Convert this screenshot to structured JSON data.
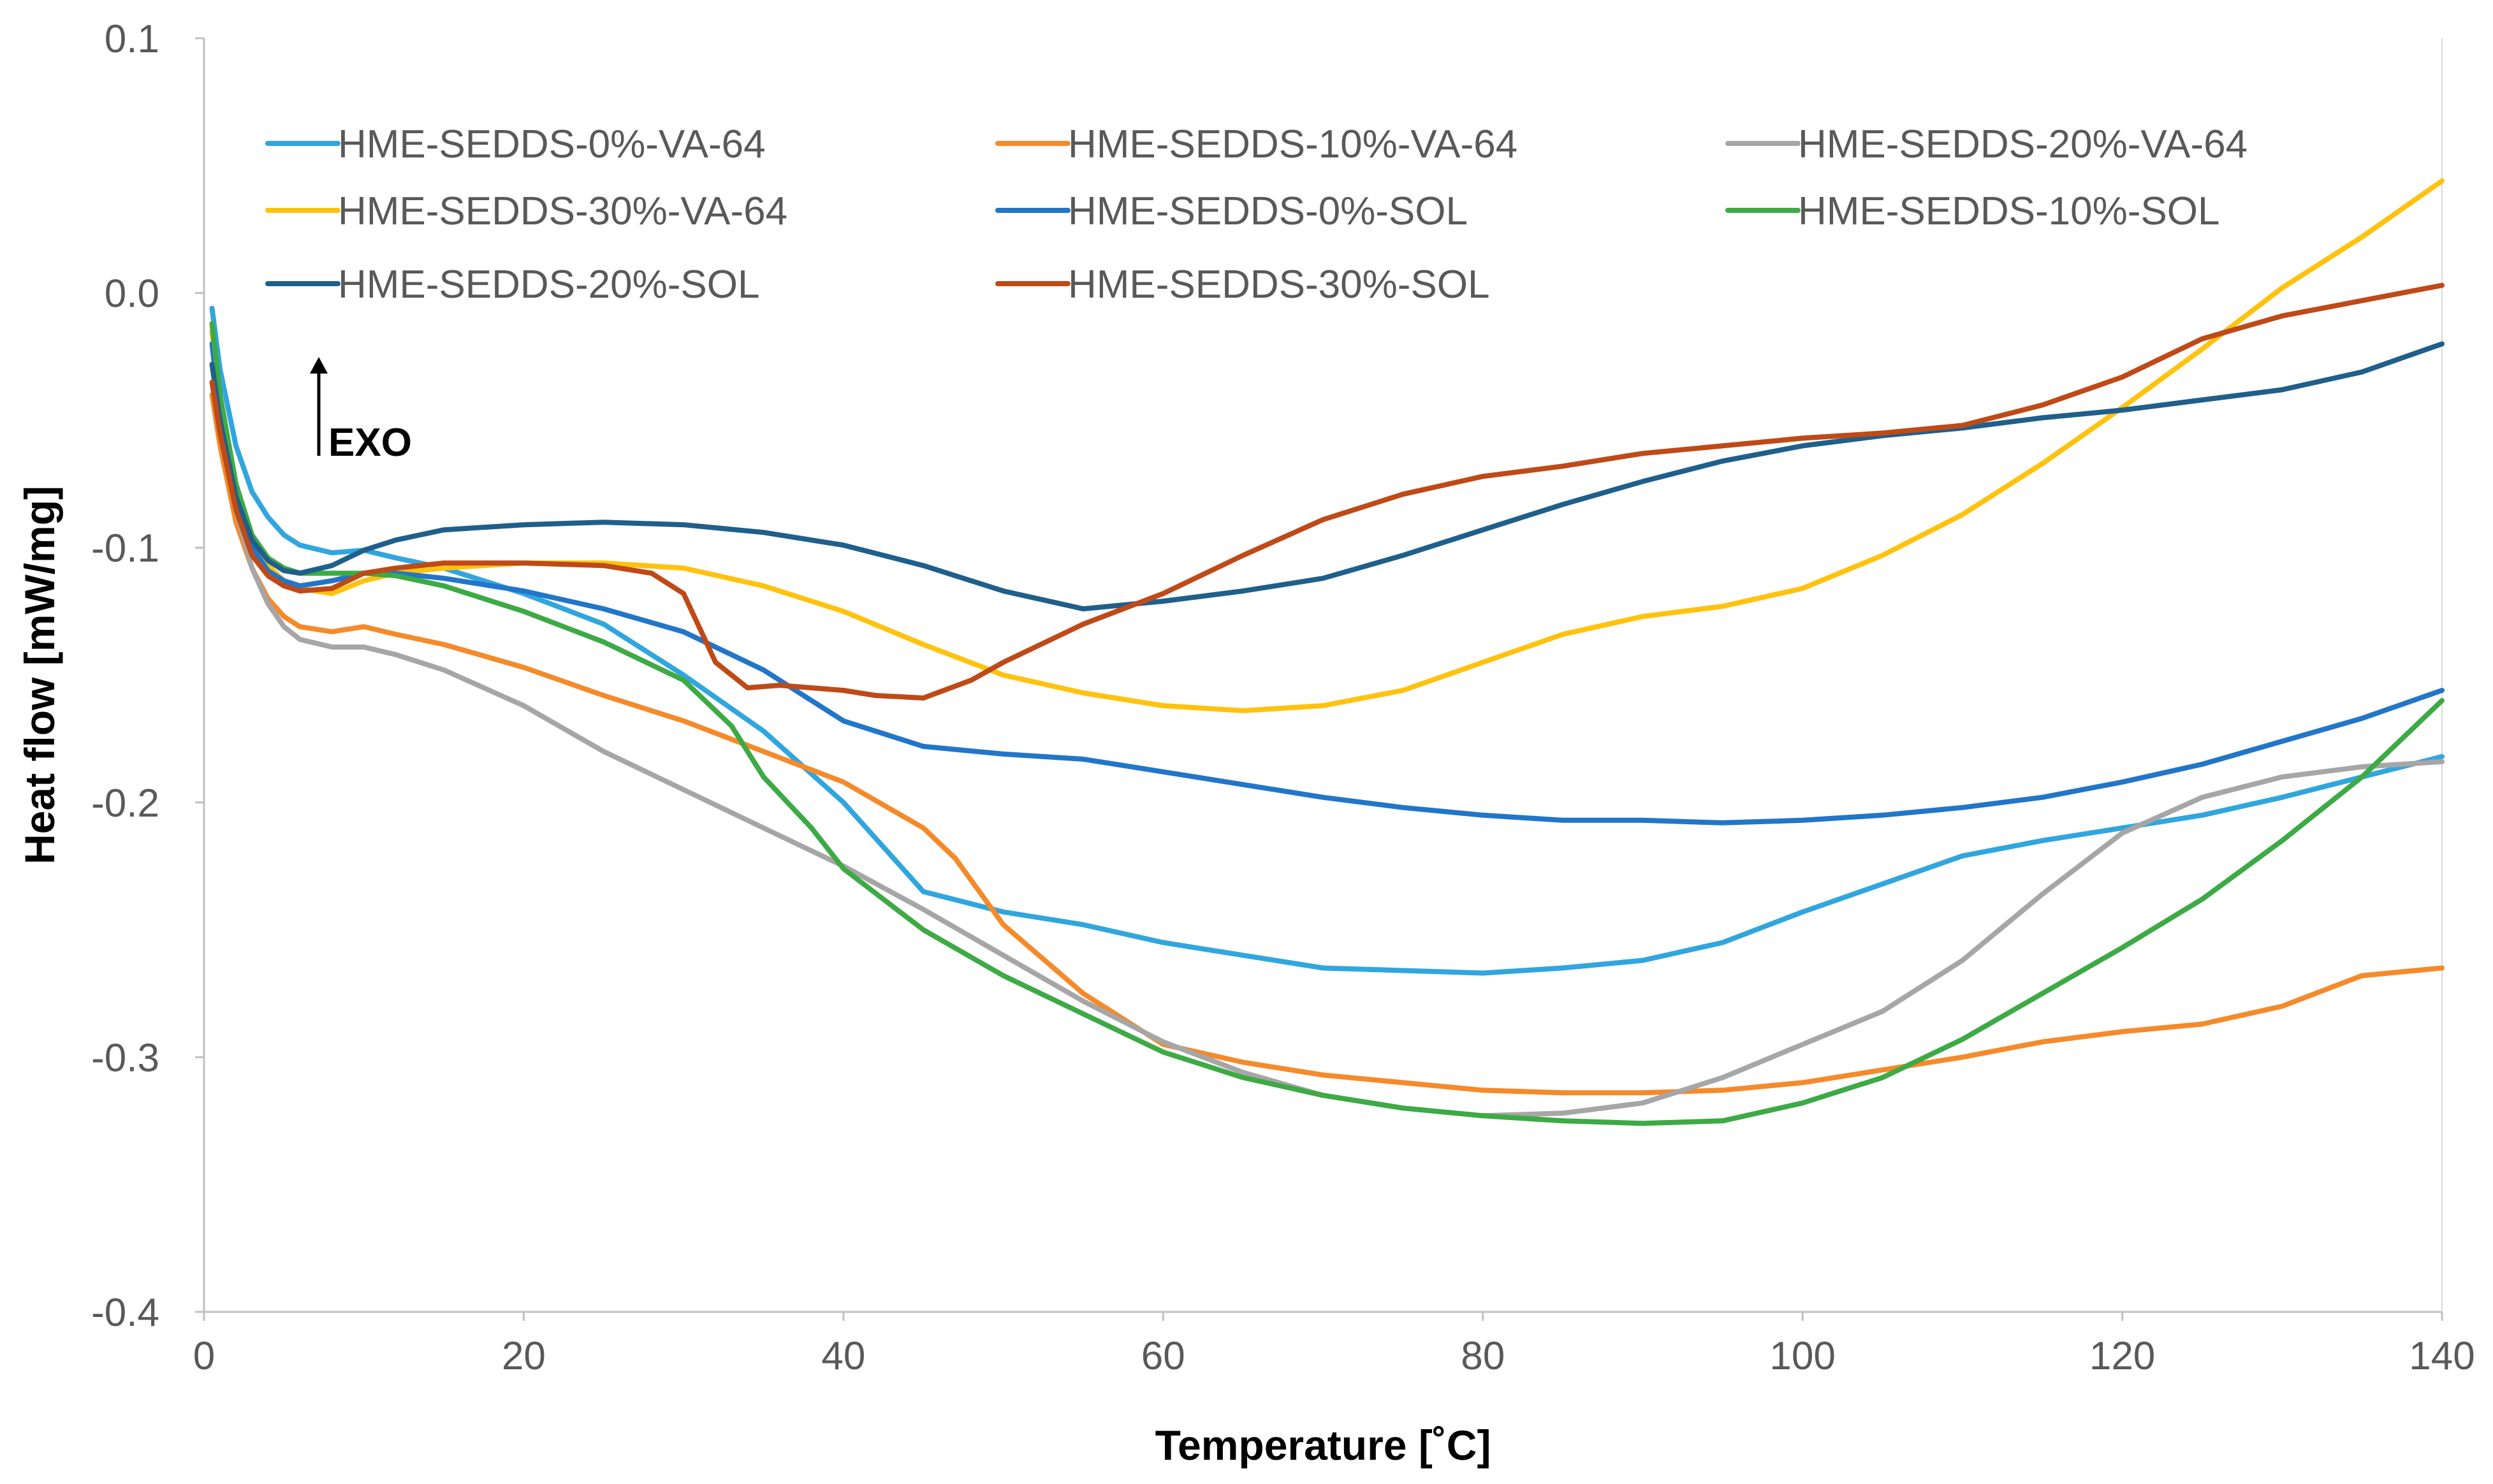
{
  "chart_data": {
    "type": "line",
    "title": "",
    "xlabel": "Temperature [˚C]",
    "ylabel": "Heat flow [mW/mg]",
    "xlim": [
      0,
      140
    ],
    "ylim": [
      -0.4,
      0.1
    ],
    "xticks": [
      "0",
      "20",
      "40",
      "60",
      "80",
      "100",
      "120",
      "140"
    ],
    "yticks": [
      "0.1",
      "0.0",
      "-0.1",
      "-0.2",
      "-0.3",
      "-0.4"
    ],
    "grid": false,
    "legend_position": "top-left, inside plot, 3 columns",
    "annotation": "EXO",
    "series": [
      {
        "name": "HME-SEDDS-0%-VA-64",
        "color": "#31A6DE",
        "x": [
          0.5,
          1,
          2,
          3,
          4,
          5,
          6,
          8,
          10,
          12,
          15,
          20,
          25,
          30,
          35,
          40,
          45,
          50,
          55,
          60,
          65,
          70,
          75,
          80,
          85,
          90,
          95,
          100,
          105,
          110,
          115,
          120,
          125,
          130,
          135,
          140
        ],
        "y": [
          -0.006,
          -0.03,
          -0.06,
          -0.078,
          -0.088,
          -0.095,
          -0.099,
          -0.102,
          -0.101,
          -0.104,
          -0.108,
          -0.118,
          -0.13,
          -0.15,
          -0.172,
          -0.2,
          -0.235,
          -0.243,
          -0.248,
          -0.255,
          -0.26,
          -0.265,
          -0.266,
          -0.267,
          -0.265,
          -0.262,
          -0.255,
          -0.243,
          -0.232,
          -0.221,
          -0.215,
          -0.21,
          -0.205,
          -0.198,
          -0.19,
          -0.182
        ]
      },
      {
        "name": "HME-SEDDS-10%-VA-64",
        "color": "#F58A2B",
        "x": [
          0.5,
          1,
          2,
          3,
          4,
          5,
          6,
          8,
          10,
          12,
          15,
          20,
          25,
          30,
          35,
          40,
          45,
          47,
          50,
          55,
          60,
          65,
          70,
          75,
          80,
          85,
          90,
          95,
          100,
          105,
          110,
          115,
          120,
          125,
          130,
          135,
          140
        ],
        "y": [
          -0.04,
          -0.06,
          -0.09,
          -0.108,
          -0.12,
          -0.127,
          -0.131,
          -0.133,
          -0.131,
          -0.134,
          -0.138,
          -0.147,
          -0.158,
          -0.168,
          -0.18,
          -0.192,
          -0.21,
          -0.222,
          -0.248,
          -0.275,
          -0.295,
          -0.302,
          -0.307,
          -0.31,
          -0.313,
          -0.314,
          -0.314,
          -0.313,
          -0.31,
          -0.305,
          -0.3,
          -0.294,
          -0.29,
          -0.287,
          -0.28,
          -0.268,
          -0.265
        ]
      },
      {
        "name": "HME-SEDDS-20%-VA-64",
        "color": "#A6A6A6",
        "x": [
          0.5,
          1,
          2,
          3,
          4,
          5,
          6,
          8,
          10,
          12,
          15,
          20,
          25,
          30,
          35,
          40,
          45,
          50,
          55,
          60,
          65,
          70,
          75,
          80,
          85,
          90,
          95,
          100,
          105,
          110,
          115,
          120,
          125,
          130,
          135,
          140
        ],
        "y": [
          -0.02,
          -0.05,
          -0.085,
          -0.108,
          -0.122,
          -0.131,
          -0.136,
          -0.139,
          -0.139,
          -0.142,
          -0.148,
          -0.162,
          -0.18,
          -0.195,
          -0.21,
          -0.225,
          -0.242,
          -0.26,
          -0.278,
          -0.294,
          -0.306,
          -0.315,
          -0.32,
          -0.323,
          -0.322,
          -0.318,
          -0.308,
          -0.295,
          -0.282,
          -0.262,
          -0.236,
          -0.212,
          -0.198,
          -0.19,
          -0.186,
          -0.184
        ]
      },
      {
        "name": "HME-SEDDS-30%-VA-64",
        "color": "#FFC20E",
        "x": [
          0.5,
          1,
          2,
          3,
          4,
          5,
          6,
          8,
          10,
          12,
          15,
          20,
          25,
          30,
          35,
          40,
          45,
          50,
          55,
          60,
          65,
          70,
          75,
          80,
          85,
          90,
          95,
          100,
          105,
          110,
          115,
          120,
          125,
          130,
          135,
          140
        ],
        "y": [
          -0.015,
          -0.045,
          -0.078,
          -0.097,
          -0.107,
          -0.113,
          -0.116,
          -0.118,
          -0.113,
          -0.11,
          -0.108,
          -0.106,
          -0.106,
          -0.108,
          -0.115,
          -0.125,
          -0.138,
          -0.15,
          -0.157,
          -0.162,
          -0.164,
          -0.162,
          -0.156,
          -0.145,
          -0.134,
          -0.127,
          -0.123,
          -0.116,
          -0.103,
          -0.087,
          -0.067,
          -0.045,
          -0.022,
          0.002,
          0.022,
          0.044
        ]
      },
      {
        "name": "HME-SEDDS-0%-SOL",
        "color": "#2276C9",
        "x": [
          0.5,
          1,
          2,
          3,
          4,
          5,
          6,
          8,
          10,
          12,
          15,
          20,
          25,
          30,
          35,
          40,
          45,
          50,
          55,
          60,
          65,
          70,
          75,
          80,
          85,
          90,
          95,
          100,
          105,
          110,
          115,
          120,
          125,
          130,
          135,
          140
        ],
        "y": [
          -0.02,
          -0.045,
          -0.08,
          -0.1,
          -0.109,
          -0.113,
          -0.115,
          -0.113,
          -0.11,
          -0.11,
          -0.112,
          -0.117,
          -0.124,
          -0.133,
          -0.148,
          -0.168,
          -0.178,
          -0.181,
          -0.183,
          -0.188,
          -0.193,
          -0.198,
          -0.202,
          -0.205,
          -0.207,
          -0.207,
          -0.208,
          -0.207,
          -0.205,
          -0.202,
          -0.198,
          -0.192,
          -0.185,
          -0.176,
          -0.167,
          -0.156
        ]
      },
      {
        "name": "HME-SEDDS-10%-SOL",
        "color": "#3DAA45",
        "x": [
          0.5,
          1,
          2,
          3,
          4,
          5,
          6,
          8,
          10,
          12,
          15,
          20,
          25,
          30,
          33,
          35,
          38,
          40,
          45,
          50,
          55,
          60,
          65,
          70,
          75,
          80,
          85,
          90,
          95,
          100,
          105,
          110,
          115,
          120,
          125,
          130,
          135,
          140
        ],
        "y": [
          -0.012,
          -0.04,
          -0.075,
          -0.095,
          -0.104,
          -0.108,
          -0.11,
          -0.11,
          -0.11,
          -0.111,
          -0.115,
          -0.125,
          -0.137,
          -0.152,
          -0.17,
          -0.19,
          -0.21,
          -0.226,
          -0.25,
          -0.268,
          -0.283,
          -0.298,
          -0.308,
          -0.315,
          -0.32,
          -0.323,
          -0.325,
          -0.326,
          -0.325,
          -0.318,
          -0.308,
          -0.293,
          -0.275,
          -0.257,
          -0.238,
          -0.215,
          -0.19,
          -0.16
        ]
      },
      {
        "name": "HME-SEDDS-20%-SOL",
        "color": "#1F5F8B",
        "x": [
          0.5,
          1,
          2,
          3,
          4,
          5,
          6,
          8,
          10,
          12,
          15,
          20,
          25,
          30,
          35,
          40,
          45,
          50,
          55,
          60,
          65,
          70,
          75,
          80,
          85,
          90,
          95,
          100,
          105,
          110,
          115,
          120,
          125,
          130,
          135,
          140
        ],
        "y": [
          -0.028,
          -0.05,
          -0.08,
          -0.097,
          -0.105,
          -0.109,
          -0.11,
          -0.107,
          -0.101,
          -0.097,
          -0.093,
          -0.091,
          -0.09,
          -0.091,
          -0.094,
          -0.099,
          -0.107,
          -0.117,
          -0.124,
          -0.121,
          -0.117,
          -0.112,
          -0.103,
          -0.093,
          -0.083,
          -0.074,
          -0.066,
          -0.06,
          -0.056,
          -0.053,
          -0.049,
          -0.046,
          -0.042,
          -0.038,
          -0.031,
          -0.02
        ]
      },
      {
        "name": "HME-SEDDS-30%-SOL",
        "color": "#BF4A17",
        "x": [
          0.5,
          1,
          2,
          3,
          4,
          5,
          6,
          8,
          10,
          12,
          15,
          20,
          25,
          28,
          30,
          32,
          34,
          36,
          38,
          40,
          42,
          45,
          48,
          50,
          55,
          60,
          65,
          70,
          75,
          80,
          85,
          90,
          95,
          100,
          105,
          110,
          115,
          120,
          125,
          130,
          135,
          140
        ],
        "y": [
          -0.035,
          -0.055,
          -0.085,
          -0.103,
          -0.111,
          -0.115,
          -0.117,
          -0.116,
          -0.11,
          -0.108,
          -0.106,
          -0.106,
          -0.107,
          -0.11,
          -0.118,
          -0.145,
          -0.155,
          -0.154,
          -0.155,
          -0.156,
          -0.158,
          -0.159,
          -0.152,
          -0.145,
          -0.13,
          -0.118,
          -0.103,
          -0.089,
          -0.079,
          -0.072,
          -0.068,
          -0.063,
          -0.06,
          -0.057,
          -0.055,
          -0.052,
          -0.044,
          -0.033,
          -0.018,
          -0.009,
          -0.003,
          0.003
        ]
      }
    ]
  }
}
